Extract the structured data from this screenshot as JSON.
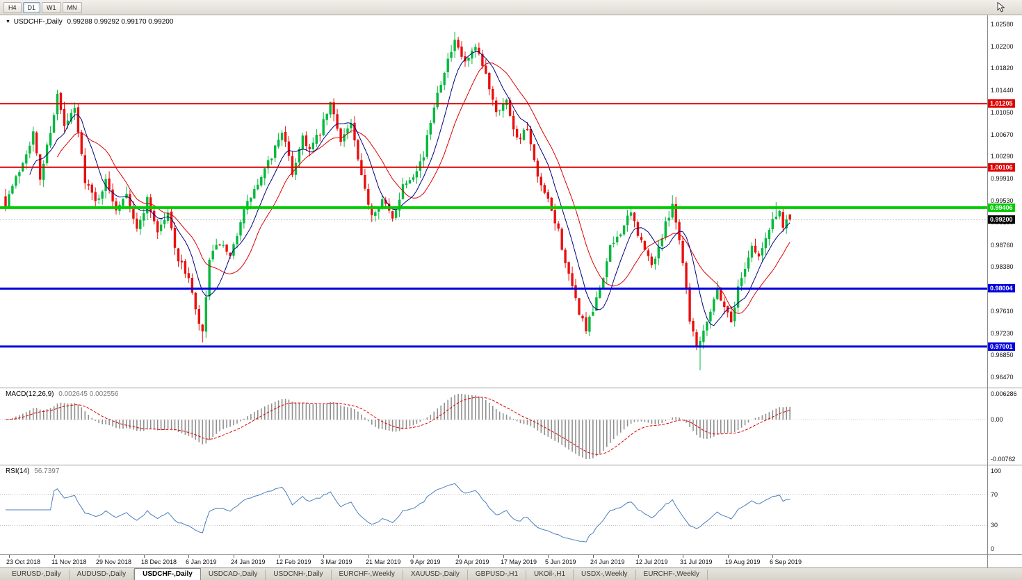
{
  "toolbar": {
    "timeframes": [
      {
        "label": "H4",
        "active": false
      },
      {
        "label": "D1",
        "active": true
      },
      {
        "label": "W1",
        "active": false
      },
      {
        "label": "MN",
        "active": false
      }
    ]
  },
  "chart": {
    "symbol": "USDCHF-,Daily",
    "ohlc_text": "0.99288 0.99292 0.99170 0.99200",
    "current_price": {
      "value": 0.992,
      "label": "0.99200"
    },
    "levels": [
      {
        "label": "1.01205",
        "value": 1.01205,
        "color": "#dd0000",
        "width": 2,
        "kind": "resistance"
      },
      {
        "label": "1.00106",
        "value": 1.00106,
        "color": "#dd0000",
        "width": 2,
        "kind": "resistance"
      },
      {
        "label": "0.99406",
        "value": 0.99406,
        "color": "#00cc00",
        "width": 4,
        "kind": "pivot"
      },
      {
        "label": "0.98004",
        "value": 0.98004,
        "color": "#0000dd",
        "width": 3,
        "kind": "support"
      },
      {
        "label": "0.97001",
        "value": 0.97001,
        "color": "#0000dd",
        "width": 3,
        "kind": "support"
      }
    ],
    "y_ticks": [
      "1.02580",
      "1.02200",
      "1.01820",
      "1.01440",
      "1.01050",
      "1.00670",
      "1.00290",
      "0.99910",
      "0.99530",
      "0.99150",
      "0.98760",
      "0.98380",
      "0.97610",
      "0.97230",
      "0.96850",
      "0.96470"
    ],
    "x_labels": [
      "23 Oct 2018",
      "11 Nov 2018",
      "29 Nov 2018",
      "18 Dec 2018",
      "6 Jan 2019",
      "24 Jan 2019",
      "12 Feb 2019",
      "3 Mar 2019",
      "21 Mar 2019",
      "9 Apr 2019",
      "29 Apr 2019",
      "17 May 2019",
      "5 Jun 2019",
      "24 Jun 2019",
      "12 Jul 2019",
      "31 Jul 2019",
      "19 Aug 2019",
      "6 Sep 2019"
    ]
  },
  "macd": {
    "name": "MACD(12,26,9)",
    "values_text": "0.002645 0.002556",
    "axis": {
      "max": "0.006286",
      "zero": "0.00",
      "min": "-0.00762"
    }
  },
  "rsi": {
    "name": "RSI(14)",
    "value_text": "56.7397",
    "axis": [
      "100",
      "70",
      "30",
      "0"
    ],
    "levels": [
      70,
      30
    ]
  },
  "tabs": {
    "items": [
      "EURUSD-,Daily",
      "AUDUSD-,Daily",
      "USDCHF-,Daily",
      "USDCAD-,Daily",
      "USDCNH-,Daily",
      "EURCHF-,Weekly",
      "XAUUSD-,Daily",
      "GBPUSD-,H1",
      "UKOil-,H1",
      "USDX-,Weekly",
      "EURCHF-,Weekly"
    ],
    "active_index": 2
  },
  "chart_data": {
    "type": "candlestick",
    "title": "USDCHF-,Daily",
    "candle_count": 228,
    "x_label_step": 13,
    "y_range": [
      0.9629,
      1.02736
    ],
    "macd_axis_range": [
      -0.00762,
      0.006286
    ],
    "rsi_range": [
      0,
      100
    ],
    "last_ohlc": [
      0.99288,
      0.99292,
      0.9917,
      0.992
    ],
    "colors": {
      "up": "#00b93c",
      "down": "#ea0f0f",
      "ma_fast": "#000080",
      "ma_slow": "#dd0000",
      "macd_hist": "#8f8f8f",
      "macd_signal": "#dd0000",
      "rsi": "#4a7ebd",
      "current_line": "#b5b5b5"
    },
    "price_path": [
      [
        0,
        0.995
      ],
      [
        4,
        1.0005
      ],
      [
        8,
        1.007
      ],
      [
        10,
        0.999
      ],
      [
        13,
        1.0075
      ],
      [
        15,
        1.0135
      ],
      [
        17,
        1.008
      ],
      [
        20,
        1.011
      ],
      [
        23,
        0.999
      ],
      [
        26,
        0.995
      ],
      [
        29,
        0.9985
      ],
      [
        32,
        0.994
      ],
      [
        35,
        0.997
      ],
      [
        38,
        0.99
      ],
      [
        41,
        0.9955
      ],
      [
        44,
        0.99
      ],
      [
        47,
        0.993
      ],
      [
        50,
        0.985
      ],
      [
        53,
        0.982
      ],
      [
        55,
        0.976
      ],
      [
        57,
        0.972
      ],
      [
        59,
        0.985
      ],
      [
        62,
        0.988
      ],
      [
        65,
        0.985
      ],
      [
        68,
        0.992
      ],
      [
        71,
        0.996
      ],
      [
        74,
        0.999
      ],
      [
        77,
        1.003
      ],
      [
        80,
        1.0075
      ],
      [
        83,
        1.0
      ],
      [
        86,
        1.0065
      ],
      [
        88,
        1.004
      ],
      [
        91,
        1.007
      ],
      [
        94,
        1.012
      ],
      [
        97,
        1.006
      ],
      [
        100,
        1.0085
      ],
      [
        103,
        0.999
      ],
      [
        106,
        0.993
      ],
      [
        109,
        0.9955
      ],
      [
        112,
        0.992
      ],
      [
        115,
        0.998
      ],
      [
        118,
        1.0
      ],
      [
        121,
        1.003
      ],
      [
        124,
        1.012
      ],
      [
        127,
        1.018
      ],
      [
        130,
        1.0225
      ],
      [
        133,
        1.019
      ],
      [
        136,
        1.0215
      ],
      [
        139,
        1.017
      ],
      [
        142,
        1.011
      ],
      [
        145,
        1.0125
      ],
      [
        148,
        1.006
      ],
      [
        151,
        1.0075
      ],
      [
        154,
        0.999
      ],
      [
        157,
        0.995
      ],
      [
        160,
        0.99
      ],
      [
        163,
        0.982
      ],
      [
        166,
        0.976
      ],
      [
        168,
        0.973
      ],
      [
        170,
        0.976
      ],
      [
        172,
        0.98
      ],
      [
        175,
        0.987
      ],
      [
        178,
        0.99
      ],
      [
        181,
        0.993
      ],
      [
        184,
        0.988
      ],
      [
        187,
        0.984
      ],
      [
        190,
        0.989
      ],
      [
        193,
        0.995
      ],
      [
        196,
        0.985
      ],
      [
        198,
        0.975
      ],
      [
        200,
        0.97
      ],
      [
        202,
        0.973
      ],
      [
        204,
        0.9765
      ],
      [
        206,
        0.98
      ],
      [
        208,
        0.977
      ],
      [
        210,
        0.9745
      ],
      [
        212,
        0.98
      ],
      [
        214,
        0.984
      ],
      [
        216,
        0.9875
      ],
      [
        218,
        0.9855
      ],
      [
        220,
        0.9885
      ],
      [
        222,
        0.992
      ],
      [
        224,
        0.9935
      ],
      [
        225,
        0.9905
      ],
      [
        226,
        0.9925
      ],
      [
        227,
        0.992
      ]
    ],
    "wick_events": [
      {
        "i": 15,
        "h": 1.0141
      },
      {
        "i": 57,
        "l": 0.9707
      },
      {
        "i": 130,
        "h": 1.0245
      },
      {
        "i": 193,
        "h": 0.9962
      },
      {
        "i": 201,
        "l": 0.9659
      },
      {
        "i": 223,
        "h": 0.995
      }
    ]
  }
}
